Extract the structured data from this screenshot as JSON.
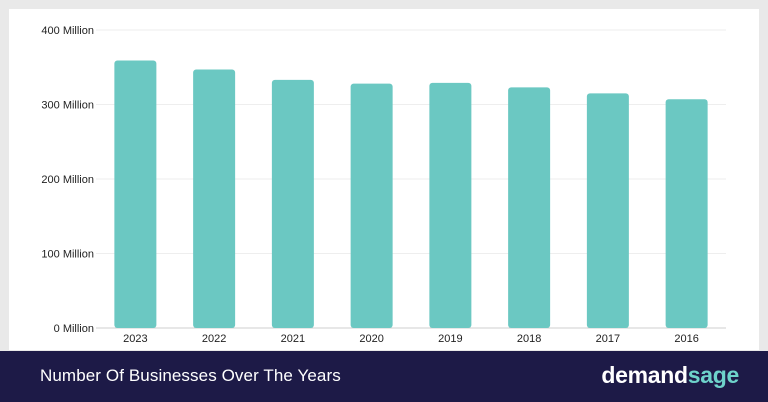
{
  "chart_data": {
    "type": "bar",
    "categories": [
      "2023",
      "2022",
      "2021",
      "2020",
      "2019",
      "2018",
      "2017",
      "2016"
    ],
    "values": [
      359,
      347,
      333,
      328,
      329,
      323,
      315,
      307
    ],
    "unit": "Million",
    "ylim": [
      0,
      400
    ],
    "yticks": [
      0,
      100,
      200,
      300,
      400
    ],
    "ytick_labels": [
      "0 Million",
      "100 Million",
      "200 Million",
      "300 Million",
      "400 Million"
    ],
    "grid": true,
    "bar_color": "#6bc8c2"
  },
  "footer": {
    "title": "Number Of Businesses Over The Years",
    "logo_part1": "demand",
    "logo_part2": "sage"
  },
  "colors": {
    "footer_bg": "#1d1a47",
    "logo_accent": "#6ed3cb"
  }
}
